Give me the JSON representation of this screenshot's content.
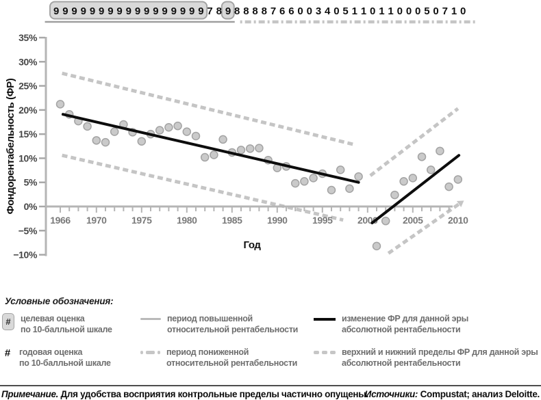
{
  "chart_data": {
    "type": "scatter",
    "ylabel": "Фондорентабельность (ФР)",
    "xlabel": "Год",
    "x_range": [
      1964.5,
      2012
    ],
    "y_range": [
      -10,
      35
    ],
    "grid": false,
    "y_ticks": [
      {
        "v": 35,
        "label": "35%"
      },
      {
        "v": 30,
        "label": "30%"
      },
      {
        "v": 25,
        "label": "25%"
      },
      {
        "v": 20,
        "label": "20%"
      },
      {
        "v": 15,
        "label": "15%"
      },
      {
        "v": 10,
        "label": "10%"
      },
      {
        "v": 5,
        "label": "5%"
      },
      {
        "v": 0,
        "label": "0%"
      },
      {
        "v": -5,
        "label": "−5%"
      },
      {
        "v": -10,
        "label": "−10%"
      }
    ],
    "x_ticks": [
      {
        "v": 1966,
        "label": "1966"
      },
      {
        "v": 1970,
        "label": "1970"
      },
      {
        "v": 1975,
        "label": "1975"
      },
      {
        "v": 1980,
        "label": "1980"
      },
      {
        "v": 1985,
        "label": "1985"
      },
      {
        "v": 1990,
        "label": "1990"
      },
      {
        "v": 1995,
        "label": "1995"
      },
      {
        "v": 2000,
        "label": "2000"
      },
      {
        "v": 2005,
        "label": "2005"
      },
      {
        "v": 2010,
        "label": "2010"
      }
    ],
    "x_minor_tick_years": [
      1966,
      2009
    ],
    "ratings": {
      "start_year": 1966,
      "digits": "9999999999999999978988887660034051101100050710",
      "target_boxes": [
        {
          "from": 1966,
          "to": 1982
        },
        {
          "from": 1985,
          "to": 1985
        }
      ],
      "period_rules": [
        {
          "style": "solid",
          "from": 1964.3,
          "to": 1985.3
        },
        {
          "style": "dashed",
          "from": 1985.9,
          "to": 2012.0
        }
      ]
    },
    "points": [
      [
        1966,
        21.2
      ],
      [
        1967,
        19.1
      ],
      [
        1968,
        17.7
      ],
      [
        1969,
        16.6
      ],
      [
        1970,
        13.7
      ],
      [
        1971,
        13.3
      ],
      [
        1972,
        15.5
      ],
      [
        1973,
        17.0
      ],
      [
        1974,
        15.4
      ],
      [
        1975,
        13.5
      ],
      [
        1976,
        15.0
      ],
      [
        1977,
        15.8
      ],
      [
        1978,
        16.4
      ],
      [
        1979,
        16.7
      ],
      [
        1980,
        15.5
      ],
      [
        1981,
        14.6
      ],
      [
        1982,
        10.2
      ],
      [
        1983,
        10.7
      ],
      [
        1984,
        13.9
      ],
      [
        1985,
        11.2
      ],
      [
        1986,
        11.7
      ],
      [
        1987,
        12.0
      ],
      [
        1988,
        12.1
      ],
      [
        1989,
        9.6
      ],
      [
        1990,
        8.0
      ],
      [
        1991,
        8.3
      ],
      [
        1992,
        4.8
      ],
      [
        1993,
        5.2
      ],
      [
        1994,
        5.9
      ],
      [
        1995,
        6.8
      ],
      [
        1996,
        3.4
      ],
      [
        1997,
        7.6
      ],
      [
        1998,
        3.7
      ],
      [
        1999,
        6.2
      ],
      [
        2001,
        -8.2
      ],
      [
        2002,
        -3.0
      ],
      [
        2003,
        2.4
      ],
      [
        2004,
        5.2
      ],
      [
        2005,
        5.9
      ],
      [
        2006,
        10.3
      ],
      [
        2007,
        7.6
      ],
      [
        2008,
        11.5
      ],
      [
        2009,
        4.1
      ],
      [
        2010,
        5.6
      ]
    ],
    "trend_lines": [
      {
        "name": "era1-roa-trend",
        "x1": 1966.3,
        "y1": 19.1,
        "x2": 1999.0,
        "y2": 5.0
      },
      {
        "name": "era2-roa-trend",
        "x1": 2000.5,
        "y1": -3.4,
        "x2": 2010.1,
        "y2": 10.6
      }
    ],
    "bound_lines": [
      {
        "name": "era1-upper-bound",
        "x1": 1966.2,
        "y1": 27.6,
        "x2": 1998.6,
        "y2": 12.8,
        "arrow": false
      },
      {
        "name": "era1-lower-bound",
        "x1": 1966.2,
        "y1": 10.6,
        "x2": 1997.3,
        "y2": -2.8,
        "arrow": false
      },
      {
        "name": "era2-upper-bound",
        "x1": 2000.3,
        "y1": 6.4,
        "x2": 2010.0,
        "y2": 20.3,
        "arrow": false
      },
      {
        "name": "era2-lower-bound",
        "x1": 2002.3,
        "y1": -9.7,
        "x2": 2010.1,
        "y2": 0.5,
        "arrow": true
      }
    ],
    "colors": {
      "trend": "#0d0d0d",
      "bound": "#c5c5c5",
      "axis": "#b5b5b5",
      "tick": "#a8a8a8",
      "rule_solid": "#9f9f9f",
      "point_fill": "#cacaca",
      "point_stroke": "#a3a3a3",
      "y_label": "#474747",
      "x_label": "#7a7a7a",
      "digit": "#101010",
      "box_fill": "#d9d9d9",
      "box_stroke": "#a3a3a3",
      "axis_title": "#0f0f0f"
    }
  },
  "legend": {
    "header": "Условные обозначения:",
    "items": [
      {
        "marker": "boxed-hash",
        "symbol": "#",
        "label": "целевая оценка\nпо 10-балльной шкале"
      },
      {
        "marker": "hash",
        "symbol": "#",
        "label": "годовая оценка\nпо 10-балльной шкале"
      },
      {
        "marker": "solid-gray-line",
        "label": "период повышенной\nотносительной рентабельности"
      },
      {
        "marker": "dashed-gray-line",
        "label": "период пониженной\nотносительной рентабельности"
      },
      {
        "marker": "solid-black-line",
        "label": "изменение ФР для данной эры\nабсолютной рентабельности"
      },
      {
        "marker": "dashed-gray-line",
        "label": "верхний и нижний пределы ФР для данной эры\nабсолютной рентабельности"
      }
    ]
  },
  "footer": {
    "note_prefix": "Примечание.",
    "note_text": " Для удобства восприятия контрольные пределы частично опущены.",
    "sources_prefix": "Источники:",
    "sources_text": " Compustat; анализ Deloitte."
  }
}
